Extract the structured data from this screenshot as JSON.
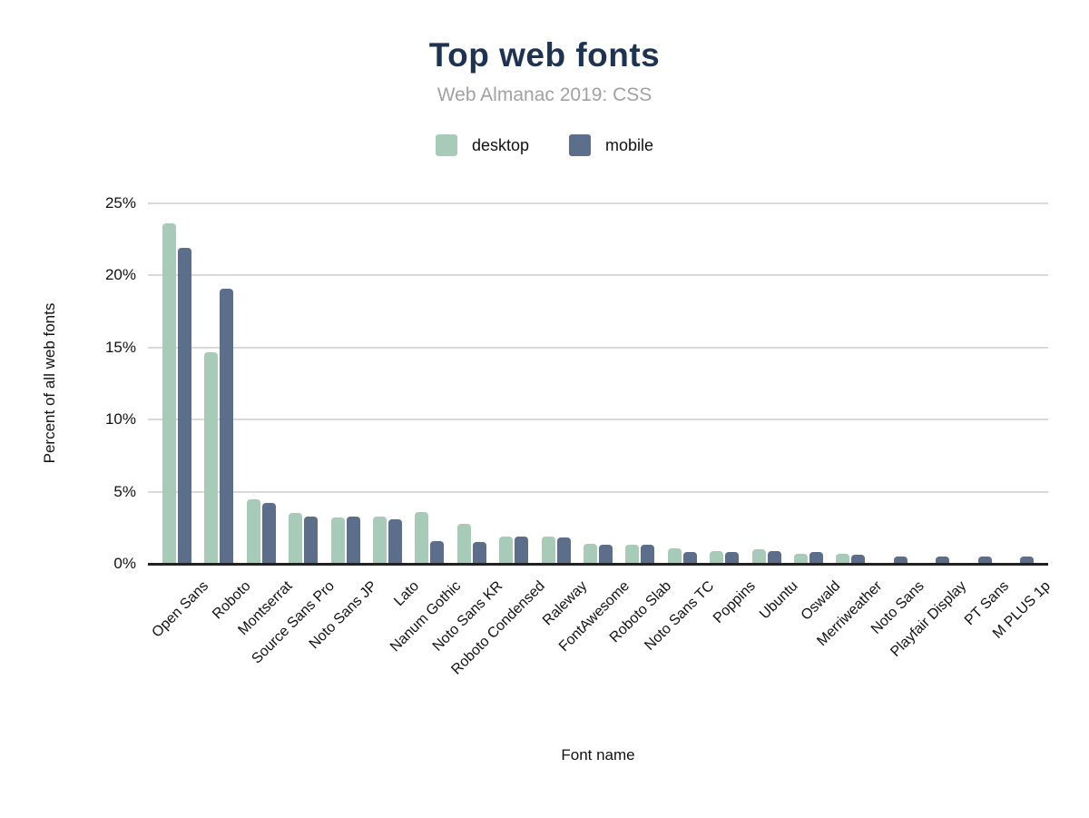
{
  "header": {
    "title": "Top web fonts",
    "subtitle": "Web Almanac 2019: CSS"
  },
  "legend": {
    "items": [
      {
        "label": "desktop",
        "color": "#a8cbb9"
      },
      {
        "label": "mobile",
        "color": "#5c6e8a"
      }
    ]
  },
  "axes": {
    "x_title": "Font name",
    "y_title": "Percent of all web fonts",
    "y_tick_labels": [
      "0%",
      "5%",
      "10%",
      "15%",
      "20%",
      "25%"
    ]
  },
  "colors": {
    "title": "#1e3350",
    "subtitle": "#a1a1a1",
    "grid": "#d9d9d9",
    "axis": "#212121",
    "desktop": "#a8cbb9",
    "mobile": "#5c6e8a"
  },
  "chart_data": {
    "type": "bar",
    "title": "Top web fonts",
    "subtitle": "Web Almanac 2019: CSS",
    "xlabel": "Font name",
    "ylabel": "Percent of all web fonts",
    "ylim": [
      0,
      25
    ],
    "yticks": [
      0,
      5,
      10,
      15,
      20,
      25
    ],
    "ytick_suffix": "%",
    "grid": true,
    "legend_position": "top",
    "categories": [
      "Open Sans",
      "Roboto",
      "Montserrat",
      "Source Sans Pro",
      "Noto Sans JP",
      "Lato",
      "Nanum Gothic",
      "Noto Sans KR",
      "Roboto Condensed",
      "Raleway",
      "FontAwesome",
      "Roboto Slab",
      "Noto Sans TC",
      "Poppins",
      "Ubuntu",
      "Oswald",
      "Merriweather",
      "Noto Sans",
      "Playfair Display",
      "PT Sans",
      "M PLUS 1p"
    ],
    "series": [
      {
        "name": "desktop",
        "color": "#a8cbb9",
        "values": [
          23.6,
          14.7,
          4.5,
          3.5,
          3.2,
          3.3,
          3.6,
          2.8,
          1.9,
          1.9,
          1.4,
          1.3,
          1.1,
          0.9,
          1.0,
          0.7,
          0.7,
          0,
          0,
          0,
          0
        ]
      },
      {
        "name": "mobile",
        "color": "#5c6e8a",
        "values": [
          21.9,
          19.1,
          4.2,
          3.3,
          3.3,
          3.1,
          1.6,
          1.5,
          1.9,
          1.8,
          1.3,
          1.3,
          0.8,
          0.8,
          0.9,
          0.8,
          0.6,
          0.5,
          0.5,
          0.5,
          0.5
        ]
      }
    ]
  }
}
